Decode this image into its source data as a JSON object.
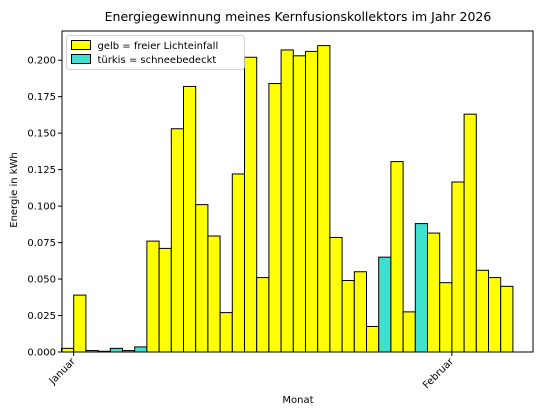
{
  "chart_data": {
    "type": "bar",
    "title": "Energiegewinnung meines Kernfusionskollektors im Jahr 2026",
    "xlabel": "Monat",
    "ylabel": "Energie in kWh",
    "ylim": [
      0,
      0.22
    ],
    "yticks": [
      0.0,
      0.025,
      0.05,
      0.075,
      0.1,
      0.125,
      0.15,
      0.175,
      0.2
    ],
    "ytick_labels": [
      "0.000",
      "0.025",
      "0.050",
      "0.075",
      "0.100",
      "0.125",
      "0.150",
      "0.175",
      "0.200"
    ],
    "xtick_labels": [
      {
        "label": "Januar",
        "at_bar": 1
      },
      {
        "label": "Februar",
        "at_bar": 32
      }
    ],
    "grid": false,
    "legend_position": "top-left",
    "legend": [
      {
        "label": "gelb = freier Lichteinfall",
        "color": "#ffff00"
      },
      {
        "label": "türkis = schneebedeckt",
        "color": "#40e0d0"
      }
    ],
    "colors": {
      "sunny": "#ffff00",
      "snow": "#40e0d0",
      "edge": "#000000"
    },
    "bars": [
      {
        "value": 0.0025,
        "snow": false
      },
      {
        "value": 0.039,
        "snow": false
      },
      {
        "value": 0.001,
        "snow": true
      },
      {
        "value": 0.0005,
        "snow": true
      },
      {
        "value": 0.0025,
        "snow": true
      },
      {
        "value": 0.001,
        "snow": true
      },
      {
        "value": 0.0035,
        "snow": true
      },
      {
        "value": 0.076,
        "snow": false
      },
      {
        "value": 0.071,
        "snow": false
      },
      {
        "value": 0.153,
        "snow": false
      },
      {
        "value": 0.182,
        "snow": false
      },
      {
        "value": 0.101,
        "snow": false
      },
      {
        "value": 0.0795,
        "snow": false
      },
      {
        "value": 0.027,
        "snow": false
      },
      {
        "value": 0.122,
        "snow": false
      },
      {
        "value": 0.202,
        "snow": false
      },
      {
        "value": 0.051,
        "snow": false
      },
      {
        "value": 0.184,
        "snow": false
      },
      {
        "value": 0.207,
        "snow": false
      },
      {
        "value": 0.203,
        "snow": false
      },
      {
        "value": 0.206,
        "snow": false
      },
      {
        "value": 0.21,
        "snow": false
      },
      {
        "value": 0.0785,
        "snow": false
      },
      {
        "value": 0.049,
        "snow": false
      },
      {
        "value": 0.055,
        "snow": false
      },
      {
        "value": 0.0175,
        "snow": false
      },
      {
        "value": 0.065,
        "snow": true
      },
      {
        "value": 0.1305,
        "snow": false
      },
      {
        "value": 0.0275,
        "snow": false
      },
      {
        "value": 0.088,
        "snow": true
      },
      {
        "value": 0.0815,
        "snow": false
      },
      {
        "value": 0.0475,
        "snow": false
      },
      {
        "value": 0.1165,
        "snow": false
      },
      {
        "value": 0.163,
        "snow": false
      },
      {
        "value": 0.056,
        "snow": false
      },
      {
        "value": 0.051,
        "snow": false
      },
      {
        "value": 0.045,
        "snow": false
      }
    ]
  }
}
